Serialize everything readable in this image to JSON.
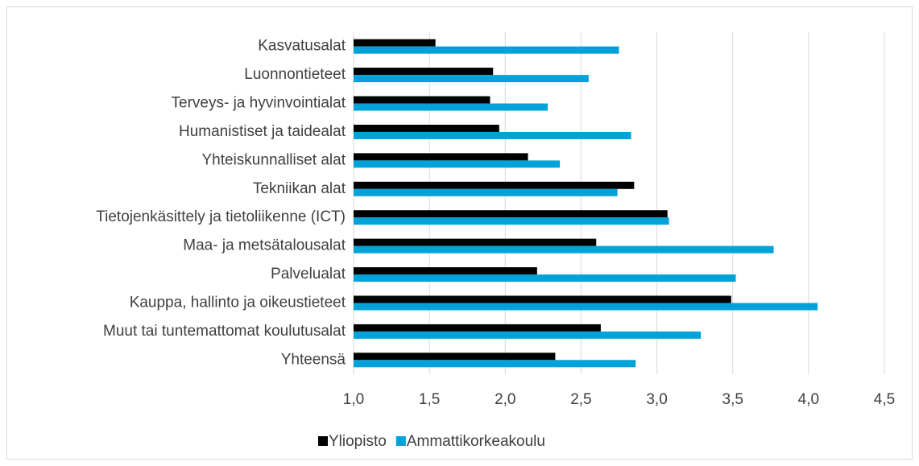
{
  "chart_data": {
    "type": "hbar",
    "categories": [
      "Kasvatusalat",
      "Luonnontieteet",
      "Terveys- ja hyvinvointialat",
      "Humanistiset ja taidealat",
      "Yhteiskunnalliset alat",
      "Tekniikan alat",
      "Tietojenkäsittely ja tietoliikenne (ICT)",
      "Maa- ja metsätalousalat",
      "Palvelualat",
      "Kauppa, hallinto ja oikeustieteet",
      "Muut tai tuntemattomat koulutusalat",
      "Yhteensä"
    ],
    "series": [
      {
        "name": "Yliopisto",
        "color": "#000000",
        "values": [
          1.54,
          1.92,
          1.9,
          1.96,
          2.15,
          2.85,
          3.07,
          2.6,
          2.21,
          3.49,
          2.63,
          2.33
        ]
      },
      {
        "name": "Ammattikorkeakoulu",
        "color": "#00a2d9",
        "values": [
          2.75,
          2.55,
          2.28,
          2.83,
          2.36,
          2.74,
          3.08,
          3.77,
          3.52,
          4.06,
          3.29,
          2.86
        ]
      }
    ],
    "xlim": [
      1.0,
      4.5
    ],
    "xticks": [
      {
        "value": 1.0,
        "label": "1,0"
      },
      {
        "value": 1.5,
        "label": "1,5"
      },
      {
        "value": 2.0,
        "label": "2,0"
      },
      {
        "value": 2.5,
        "label": "2,5"
      },
      {
        "value": 3.0,
        "label": "3,0"
      },
      {
        "value": 3.5,
        "label": "3,5"
      },
      {
        "value": 4.0,
        "label": "4,0"
      },
      {
        "value": 4.5,
        "label": "4,5"
      }
    ],
    "grid": true,
    "legend": "bottom"
  }
}
